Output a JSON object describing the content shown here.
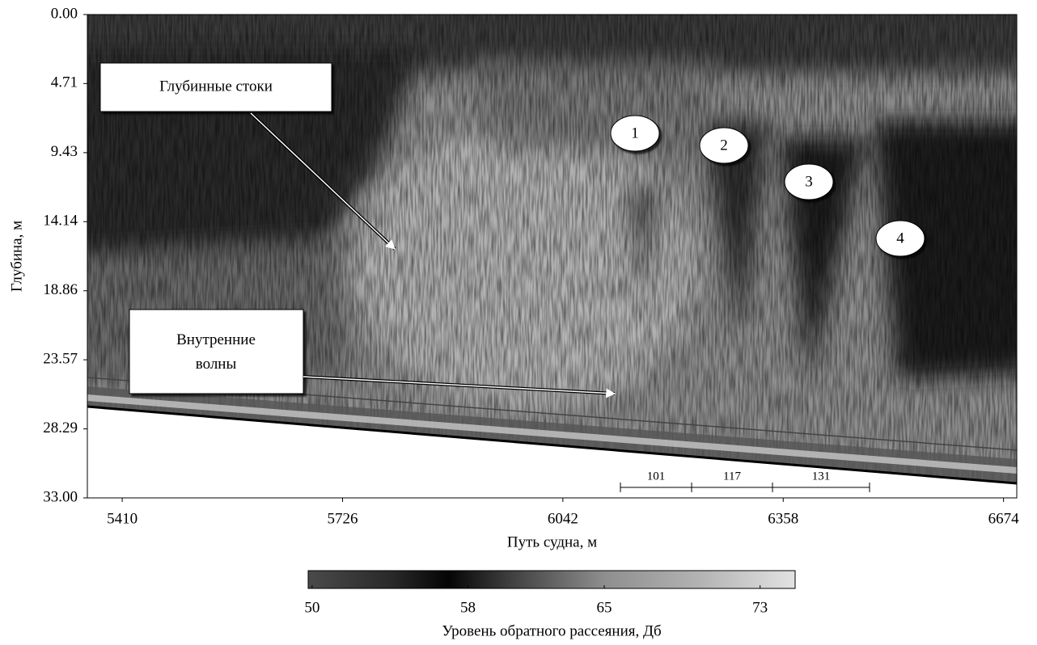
{
  "chart_data": {
    "type": "heatmap",
    "x_label": "Путь судна, м",
    "y_label": "Глубина, м",
    "xlim": [
      5360,
      6693
    ],
    "xticks": [
      5410,
      5726,
      6042,
      6358,
      6674
    ],
    "ylim": [
      0,
      33
    ],
    "y_inverted": true,
    "yticks": [
      {
        "value": 0,
        "label": "0.00"
      },
      4.71,
      9.43,
      14.14,
      18.86,
      23.57,
      28.29,
      {
        "value": 33,
        "label": "33.00"
      }
    ],
    "colorbar": {
      "label": "Уровень обратного рассеяния, Дб",
      "lim": [
        49.8,
        74.8
      ],
      "ticks": [
        50,
        58,
        65,
        73
      ],
      "colormap": [
        {
          "value": 49.8,
          "color": "#4a4a4a"
        },
        {
          "value": 54,
          "color": "#2a2a2a"
        },
        {
          "value": 57,
          "color": "#050505"
        },
        {
          "value": 60,
          "color": "#3c3c3c"
        },
        {
          "value": 65,
          "color": "#8e8e8e"
        },
        {
          "value": 70,
          "color": "#b4b4b4"
        },
        {
          "value": 74.8,
          "color": "#e2e2e2"
        }
      ]
    },
    "annotations": {
      "boxes": [
        "Глубинные стоки",
        "Внутренние волны"
      ],
      "markers": [
        "1",
        "2",
        "3",
        "4"
      ],
      "scale_segments": [
        "101",
        "117",
        "131"
      ]
    }
  }
}
